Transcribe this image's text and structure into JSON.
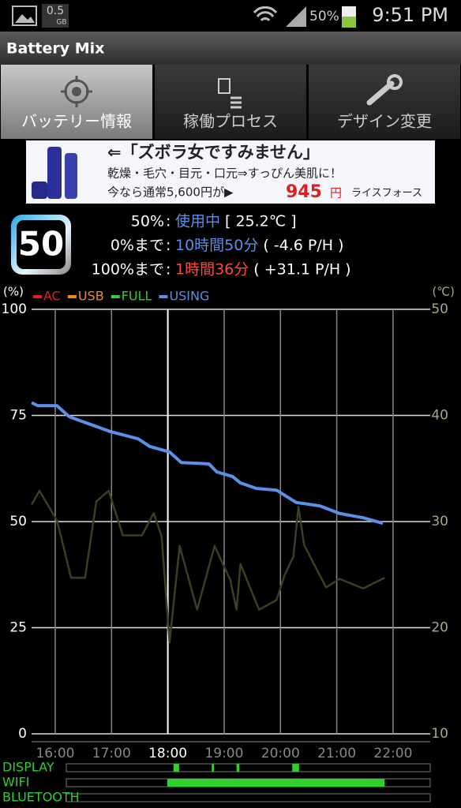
{
  "status_bar": {
    "storage": "0.5",
    "storage_unit": "GB",
    "battery": "50%",
    "time": "9:51 PM"
  },
  "app_title": "Battery Mix",
  "tabs": [
    "バッテリー情報",
    "稼働プロセス",
    "デザイン変更"
  ],
  "ad": {
    "headline": "⇐「ズボラ女ですみません」",
    "line2": "乾燥・毛穴・目元・口元⇒すっぴん美肌に！",
    "line3": "今なら通常5,600円が▶",
    "price": "945",
    "yen": "円",
    "brand": "ライスフォース"
  },
  "summary": {
    "badge": "50",
    "rows": [
      [
        "50%",
        ":",
        "使用中",
        "[ 25.2℃ ]"
      ],
      [
        "0%まで",
        ":",
        "10時間50分",
        "( -4.6 P/H )"
      ],
      [
        "100%まで",
        ":",
        "1時間36分",
        "( +31.1 P/H )"
      ]
    ]
  },
  "chart_data": {
    "type": "line",
    "y_label": "(%)",
    "y2_label": "(℃)",
    "series": [
      {
        "name": "AC",
        "color": "#e0241b",
        "x": [],
        "values": []
      },
      {
        "name": "USB",
        "color": "#f08a24",
        "x": [],
        "values": []
      },
      {
        "name": "FULL",
        "color": "#2fd12f",
        "x": [],
        "values": []
      },
      {
        "name": "USING",
        "color": "#5b8fe8",
        "x": [
          15.58,
          15.69,
          16.03,
          16.25,
          16.56,
          16.98,
          17.47,
          17.68,
          18.03,
          18.24,
          18.73,
          18.87,
          19.15,
          19.29,
          19.57,
          19.93,
          20.28,
          20.7,
          21.05,
          21.47,
          21.82
        ],
        "values": [
          78,
          77.3,
          77.3,
          74.7,
          73.2,
          71.2,
          69.5,
          67.7,
          66.4,
          63.9,
          63.6,
          61.7,
          60.6,
          59.1,
          57.8,
          57.4,
          54.5,
          53.7,
          51.9,
          50.9,
          49.6
        ]
      },
      {
        "color": "#3c3f22",
        "axis": "y2",
        "x": [
          15.58,
          15.72,
          16.03,
          16.14,
          16.28,
          16.53,
          16.73,
          16.95,
          17.2,
          17.54,
          17.75,
          17.89,
          18.03,
          18.21,
          18.52,
          18.83,
          19.11,
          19.22,
          19.29,
          19.62,
          19.93,
          20.07,
          20.23,
          20.32,
          20.42,
          20.81,
          21.05,
          21.47,
          21.85
        ],
        "values": [
          31.6,
          32.9,
          30.1,
          27.8,
          24.7,
          24.7,
          31.9,
          32.9,
          28.7,
          28.7,
          30.8,
          28.6,
          18.6,
          27.7,
          21.7,
          27.7,
          24.5,
          21.7,
          26,
          21.7,
          22.6,
          24.9,
          26.7,
          31.4,
          27.8,
          23.8,
          24.6,
          23.7,
          24.7
        ]
      }
    ],
    "xlim": [
      15.58,
      22.66
    ],
    "xticks": [
      {
        "value": 16,
        "label": "16:00"
      },
      {
        "value": 17,
        "label": "17:00"
      },
      {
        "value": 18,
        "label": "18:00"
      },
      {
        "value": 19,
        "label": "19:00"
      },
      {
        "value": 20,
        "label": "20:00"
      },
      {
        "value": 21,
        "label": "21:00"
      },
      {
        "value": 22,
        "label": "22:00"
      }
    ],
    "ylim": [
      0,
      100
    ],
    "yticks": [
      0,
      25,
      50,
      75,
      100
    ],
    "y2lim": [
      10,
      50
    ],
    "y2ticks": [
      10,
      20,
      30,
      40,
      50
    ],
    "grid": true,
    "activity": [
      {
        "label": "DISPLAY",
        "color": "#2fd12f",
        "segments": [
          [
            18.1,
            18.2
          ],
          [
            18.78,
            18.82
          ],
          [
            19.22,
            19.27
          ],
          [
            20.21,
            20.33
          ]
        ]
      },
      {
        "label": "WIFI",
        "color": "#2fd12f",
        "segments": [
          [
            17.99,
            21.85
          ]
        ]
      },
      {
        "label": "BLUETOOTH",
        "color": "#2fd12f",
        "segments": []
      }
    ]
  }
}
